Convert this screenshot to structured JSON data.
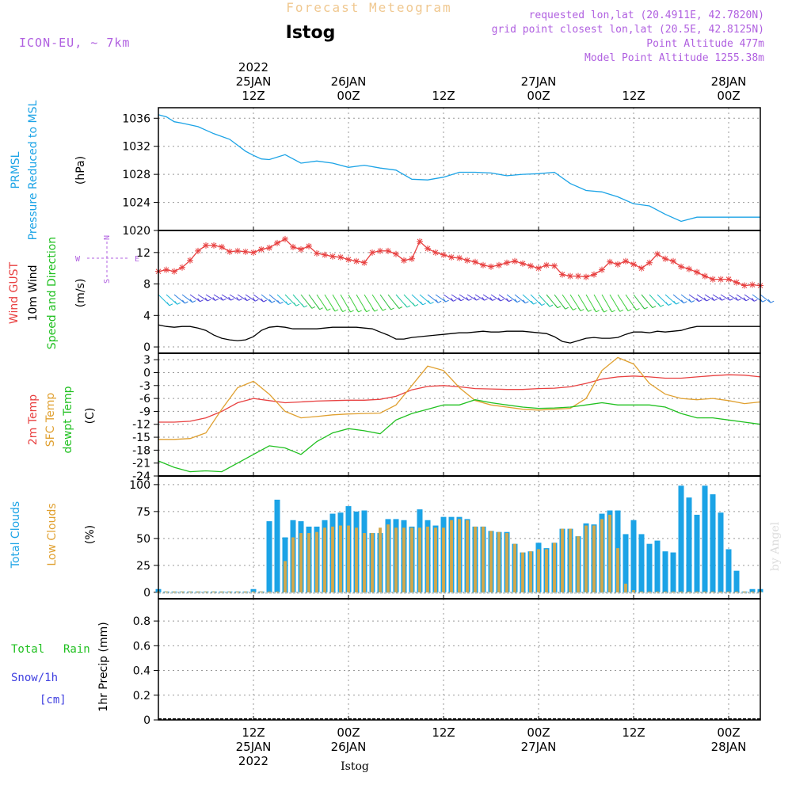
{
  "header": {
    "title_top": "Forecast Meteogram",
    "station": "Istog",
    "model": "ICON-EU, ~ 7km",
    "requested": "requested lon,lat (20.4911E, 42.7820N)",
    "gridpoint": "grid point closest lon,lat (20.5E, 42.8125N)",
    "point_alt": "Point Altitude 477m",
    "model_alt": "Model Point Altitude 1255.38m",
    "footer_station": "Istog",
    "watermark": "by Angel"
  },
  "time_axis": {
    "top_labels": [
      {
        "hour": 12,
        "lines": [
          "2022",
          "25JAN",
          "12Z"
        ]
      },
      {
        "hour": 24,
        "lines": [
          "26JAN",
          "00Z"
        ]
      },
      {
        "hour": 36,
        "lines": [
          "12Z"
        ]
      },
      {
        "hour": 48,
        "lines": [
          "27JAN",
          "00Z"
        ]
      },
      {
        "hour": 60,
        "lines": [
          "12Z"
        ]
      },
      {
        "hour": 72,
        "lines": [
          "28JAN",
          "00Z"
        ]
      }
    ],
    "bottom_labels": [
      {
        "hour": 12,
        "lines": [
          "12Z",
          "25JAN",
          "2022"
        ]
      },
      {
        "hour": 24,
        "lines": [
          "00Z",
          "26JAN"
        ]
      },
      {
        "hour": 36,
        "lines": [
          "12Z"
        ]
      },
      {
        "hour": 48,
        "lines": [
          "00Z",
          "27JAN"
        ]
      },
      {
        "hour": 60,
        "lines": [
          "12Z"
        ]
      },
      {
        "hour": 72,
        "lines": [
          "00Z",
          "28JAN"
        ]
      }
    ],
    "range_hours": [
      0,
      76
    ]
  },
  "labels": {
    "prmsl": "PRMSL",
    "prmsl2": "Pressure Reduced to MSL",
    "hpa": "(hPa)",
    "gust": "Wind GUST",
    "wind10": "10m Wind",
    "speeddir": "Speed and Direction",
    "ms": "(m/s)",
    "compass": {
      "n": "N",
      "s": "S",
      "w": "W",
      "e": "E"
    },
    "t2m": "2m Temp",
    "sfct": "SFC Temp",
    "dewpt": "dewpt Temp",
    "c": "(C)",
    "totcl": "Total Clouds",
    "lowcl": "Low Clouds",
    "pct": "(%)",
    "totrain": "Total",
    "rain": "Rain",
    "snow": "Snow/1h",
    "cm": "[cm]",
    "precip": "1hr Precip (mm)"
  },
  "colors": {
    "pressure": "#1ba3e6",
    "gust": "#e84040",
    "wind_speed": "#000000",
    "t2m": "#e84040",
    "sfc": "#e0a030",
    "dew": "#20c020",
    "total_clouds": "#1ba3e6",
    "low_clouds": "#d4a84a",
    "header_purple": "#b060e0",
    "title_orange": "#f0c890",
    "rain_green": "#20c020",
    "snow_blue": "#4040e0"
  },
  "chart_data": [
    {
      "type": "line",
      "panel": "pressure",
      "ylabel": "(hPa)",
      "ylim": [
        1020,
        1037.5
      ],
      "yticks": [
        1020,
        1024,
        1028,
        1032,
        1036
      ],
      "x": [
        0,
        1,
        2,
        3,
        5,
        7,
        9,
        11,
        12,
        13,
        14,
        16,
        18,
        20,
        22,
        24,
        26,
        28,
        30,
        32,
        34,
        36,
        38,
        40,
        42,
        44,
        46,
        48,
        50,
        52,
        54,
        56,
        58,
        60,
        62,
        64,
        66,
        68,
        70,
        72,
        74,
        75,
        76
      ],
      "series": [
        {
          "name": "PRMSL",
          "values": [
            1036.5,
            1036.2,
            1035.5,
            1035.3,
            1034.8,
            1033.8,
            1033.0,
            1031.3,
            1030.7,
            1030.2,
            1030.1,
            1030.8,
            1029.6,
            1029.9,
            1029.6,
            1029.0,
            1029.3,
            1028.9,
            1028.6,
            1027.3,
            1027.2,
            1027.6,
            1028.3,
            1028.3,
            1028.2,
            1027.8,
            1028.0,
            1028.1,
            1028.3,
            1026.7,
            1025.7,
            1025.5,
            1024.8,
            1023.8,
            1023.5,
            1022.3,
            1021.3,
            1021.9,
            1021.9,
            1021.9,
            1021.9,
            1021.9,
            1021.9
          ]
        }
      ]
    },
    {
      "type": "line",
      "panel": "wind",
      "ylabel": "(m/s)",
      "ylim": [
        -0.8,
        14.8
      ],
      "yticks": [
        0,
        4,
        8,
        12
      ],
      "x": [
        0,
        1,
        2,
        3,
        4,
        5,
        6,
        7,
        8,
        9,
        10,
        11,
        12,
        13,
        14,
        15,
        16,
        17,
        18,
        19,
        20,
        21,
        22,
        23,
        24,
        25,
        26,
        27,
        28,
        29,
        30,
        31,
        32,
        33,
        34,
        35,
        36,
        37,
        38,
        39,
        40,
        41,
        42,
        43,
        44,
        45,
        46,
        47,
        48,
        49,
        50,
        51,
        52,
        53,
        54,
        55,
        56,
        57,
        58,
        59,
        60,
        61,
        62,
        63,
        64,
        65,
        66,
        67,
        68,
        69,
        70,
        71,
        72,
        73,
        74,
        75,
        76
      ],
      "series": [
        {
          "name": "Wind GUST",
          "values": [
            9.6,
            9.8,
            9.6,
            10.1,
            11.0,
            12.2,
            12.9,
            12.9,
            12.7,
            12.1,
            12.2,
            12.1,
            12.0,
            12.4,
            12.6,
            13.2,
            13.7,
            12.7,
            12.4,
            12.8,
            11.9,
            11.7,
            11.5,
            11.4,
            11.1,
            10.9,
            10.7,
            12.0,
            12.2,
            12.2,
            11.8,
            11.0,
            11.2,
            13.4,
            12.5,
            12.0,
            11.7,
            11.4,
            11.3,
            11.0,
            10.8,
            10.4,
            10.2,
            10.4,
            10.7,
            10.9,
            10.6,
            10.3,
            10.0,
            10.4,
            10.3,
            9.2,
            9.0,
            9.0,
            8.9,
            9.2,
            9.8,
            10.8,
            10.5,
            10.9,
            10.5,
            10.0,
            10.7,
            11.8,
            11.2,
            10.9,
            10.2,
            9.9,
            9.5,
            9.0,
            8.6,
            8.6,
            8.6,
            8.2,
            7.8,
            7.9,
            7.8
          ]
        },
        {
          "name": "10m Wind",
          "values": [
            2.8,
            2.6,
            2.5,
            2.6,
            2.6,
            2.4,
            2.1,
            1.5,
            1.1,
            0.9,
            0.8,
            0.9,
            1.3,
            2.1,
            2.5,
            2.6,
            2.5,
            2.3,
            2.3,
            2.3,
            2.3,
            2.4,
            2.5,
            2.5,
            2.5,
            2.5,
            2.4,
            2.3,
            1.9,
            1.5,
            1.0,
            1.0,
            1.2,
            1.3,
            1.4,
            1.5,
            1.6,
            1.7,
            1.8,
            1.8,
            1.9,
            2.0,
            1.9,
            1.9,
            2.0,
            2.0,
            2.0,
            1.9,
            1.8,
            1.7,
            1.3,
            0.7,
            0.5,
            0.8,
            1.1,
            1.2,
            1.1,
            1.1,
            1.2,
            1.6,
            1.9,
            1.9,
            1.8,
            2.0,
            1.9,
            2.0,
            2.1,
            2.4,
            2.6,
            2.6,
            2.6,
            2.6,
            2.6,
            2.6,
            2.6,
            2.6,
            2.6
          ]
        }
      ]
    },
    {
      "type": "line",
      "panel": "temperature",
      "ylabel": "(C)",
      "ylim": [
        -24,
        4.5
      ],
      "yticks": [
        -24,
        -21,
        -18,
        -15,
        -12,
        -9,
        -6,
        -3,
        0,
        3
      ],
      "x": [
        0,
        2,
        4,
        6,
        8,
        10,
        12,
        14,
        16,
        18,
        20,
        22,
        24,
        26,
        28,
        30,
        32,
        34,
        36,
        38,
        40,
        42,
        44,
        46,
        48,
        50,
        52,
        54,
        56,
        58,
        60,
        62,
        64,
        66,
        68,
        70,
        72,
        74,
        76
      ],
      "series": [
        {
          "name": "2m Temp",
          "values": [
            -11.5,
            -11.5,
            -11.3,
            -10.5,
            -9.0,
            -7.0,
            -6.0,
            -6.5,
            -7.0,
            -6.8,
            -6.6,
            -6.5,
            -6.4,
            -6.4,
            -6.2,
            -5.5,
            -4.0,
            -3.2,
            -3.0,
            -3.3,
            -3.7,
            -3.8,
            -3.9,
            -3.9,
            -3.7,
            -3.6,
            -3.3,
            -2.5,
            -1.5,
            -1.0,
            -0.8,
            -1.0,
            -1.3,
            -1.3,
            -1.0,
            -0.7,
            -0.5,
            -0.6,
            -1.0
          ]
        },
        {
          "name": "SFC Temp",
          "values": [
            -15.5,
            -15.5,
            -15.3,
            -14.0,
            -8.5,
            -3.5,
            -2.0,
            -5.0,
            -9.0,
            -10.5,
            -10.2,
            -9.8,
            -9.6,
            -9.5,
            -9.4,
            -7.5,
            -3.0,
            1.5,
            0.5,
            -3.5,
            -6.5,
            -7.5,
            -8.0,
            -8.5,
            -8.7,
            -8.5,
            -8.3,
            -6.0,
            0.5,
            3.5,
            2.0,
            -2.5,
            -5.0,
            -6.0,
            -6.3,
            -6.0,
            -6.5,
            -7.2,
            -6.8
          ]
        },
        {
          "name": "dewpt Temp",
          "values": [
            -20.5,
            -22.0,
            -23.0,
            -22.8,
            -23.0,
            -21.0,
            -19.0,
            -17.0,
            -17.5,
            -19.0,
            -16.0,
            -14.0,
            -13.0,
            -13.5,
            -14.2,
            -11.0,
            -9.5,
            -8.5,
            -7.5,
            -7.5,
            -6.3,
            -7.0,
            -7.5,
            -8.0,
            -8.3,
            -8.2,
            -8.0,
            -7.5,
            -7.0,
            -7.5,
            -7.5,
            -7.5,
            -8.0,
            -9.5,
            -10.5,
            -10.5,
            -11.0,
            -11.5,
            -12.0
          ]
        }
      ]
    },
    {
      "type": "bar",
      "panel": "clouds",
      "ylabel": "(%)",
      "ylim": [
        -6,
        108
      ],
      "yticks": [
        0,
        25,
        50,
        75,
        100
      ],
      "x": [
        0,
        1,
        2,
        3,
        4,
        5,
        6,
        7,
        8,
        9,
        10,
        11,
        12,
        13,
        14,
        15,
        16,
        17,
        18,
        19,
        20,
        21,
        22,
        23,
        24,
        25,
        26,
        27,
        28,
        29,
        30,
        31,
        32,
        33,
        34,
        35,
        36,
        37,
        38,
        39,
        40,
        41,
        42,
        43,
        44,
        45,
        46,
        47,
        48,
        49,
        50,
        51,
        52,
        53,
        54,
        55,
        56,
        57,
        58,
        59,
        60,
        61,
        62,
        63,
        64,
        65,
        66,
        67,
        68,
        69,
        70,
        71,
        72,
        73,
        74,
        75,
        76
      ],
      "series": [
        {
          "name": "Total Clouds",
          "values": [
            3,
            0,
            0,
            0,
            0,
            0,
            0,
            0,
            0,
            0,
            0,
            0,
            3,
            0,
            66,
            86,
            51,
            67,
            66,
            61,
            61,
            67,
            73,
            74,
            80,
            75,
            76,
            55,
            55,
            68,
            68,
            67,
            61,
            77,
            67,
            62,
            70,
            70,
            70,
            68,
            61,
            61,
            57,
            56,
            56,
            45,
            37,
            38,
            46,
            41,
            46,
            59,
            59,
            52,
            64,
            63,
            73,
            76,
            76,
            54,
            67,
            54,
            45,
            48,
            38,
            37,
            99,
            88,
            72,
            99,
            91,
            74,
            40,
            20,
            0,
            3,
            3
          ]
        },
        {
          "name": "Low Clouds",
          "values": [
            0,
            0,
            0,
            0,
            0,
            0,
            0,
            0,
            0,
            0,
            0,
            0,
            0,
            0,
            0,
            0,
            29,
            51,
            55,
            55,
            56,
            60,
            61,
            62,
            62,
            60,
            55,
            55,
            60,
            63,
            60,
            60,
            60,
            60,
            61,
            60,
            60,
            67,
            68,
            67,
            61,
            61,
            57,
            56,
            55,
            45,
            37,
            38,
            40,
            40,
            46,
            59,
            59,
            52,
            62,
            62,
            68,
            72,
            41,
            8,
            2,
            0,
            0,
            0,
            0,
            0,
            0,
            0,
            0,
            0,
            0,
            0,
            0,
            0,
            0,
            0,
            0
          ]
        }
      ]
    },
    {
      "type": "bar",
      "panel": "precipitation",
      "ylabel": "1hr Precip (mm)",
      "ylim": [
        0,
        0.98
      ],
      "yticks": [
        0,
        0.2,
        0.4,
        0.6,
        0.8
      ],
      "x": [],
      "series": [
        {
          "name": "Total Rain",
          "values": []
        }
      ]
    }
  ]
}
